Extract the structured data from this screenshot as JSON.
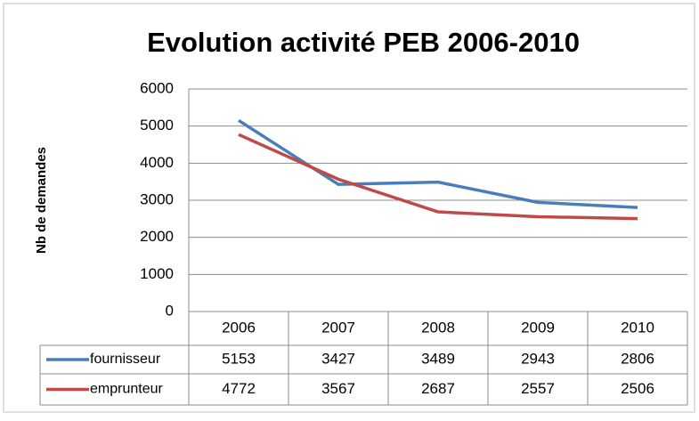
{
  "chart_data": {
    "type": "line",
    "title": "Evolution activité PEB 2006-2010",
    "y_label": "Nb de demandes",
    "categories": [
      "2006",
      "2007",
      "2008",
      "2009",
      "2010"
    ],
    "series": [
      {
        "name": "fournisseur",
        "color": "#4a7ebb",
        "values": [
          5153,
          3427,
          3489,
          2943,
          2806
        ]
      },
      {
        "name": "emprunteur",
        "color": "#be4b48",
        "values": [
          4772,
          3567,
          2687,
          2557,
          2506
        ]
      }
    ],
    "ylim": [
      0,
      6000
    ],
    "yticks": [
      0,
      1000,
      2000,
      3000,
      4000,
      5000,
      6000
    ],
    "grid": true,
    "data_table": true
  }
}
